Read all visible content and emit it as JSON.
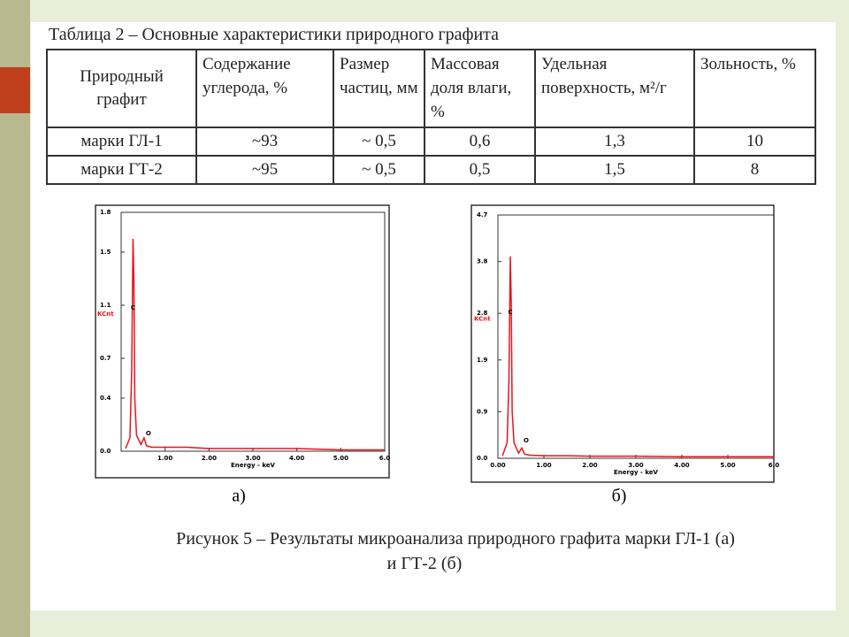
{
  "table": {
    "caption": "Таблица 2 – Основные характеристики природного графита",
    "header": [
      "Природный графит",
      "Содержание углерода, %",
      "Размер частиц, мм",
      "Массовая доля влаги, %",
      "Удельная поверхность, м²/г",
      "Зольность, %"
    ],
    "rows": [
      [
        "марки ГЛ-1",
        "~93",
        "~ 0,5",
        "0,6",
        "1,3",
        "10"
      ],
      [
        "марки ГТ-2",
        "~95",
        "~ 0,5",
        "0,5",
        "1,5",
        "8"
      ]
    ]
  },
  "figures": [
    {
      "type": "area",
      "label": "а)",
      "y_label": "KCnt",
      "x_label": "Energy - keV",
      "color": "#e8141c",
      "peak_labels": [
        "C",
        "O"
      ],
      "ylim": [
        0,
        1.8
      ],
      "yticks": [
        {
          "value": 0,
          "label": "0.0"
        },
        0.4,
        0.7,
        1.1,
        1.5,
        1.8
      ],
      "xlim": [
        0,
        6
      ],
      "xticks": [
        {
          "value": 1,
          "label": "1.00"
        },
        {
          "value": 2,
          "label": "2.00"
        },
        {
          "value": 3,
          "label": "3.00"
        },
        {
          "value": 4,
          "label": "4.00"
        },
        {
          "value": 5,
          "label": "5.00"
        },
        {
          "value": 6,
          "label": "6.0"
        }
      ],
      "x": [
        0.1,
        0.2,
        0.24,
        0.27,
        0.29,
        0.31,
        0.35,
        0.45,
        0.52,
        0.58,
        0.7,
        1.0,
        1.5,
        2.0,
        3.0,
        4.0,
        5.0,
        6.0
      ],
      "values": [
        0.02,
        0.1,
        0.6,
        1.6,
        1.3,
        0.4,
        0.12,
        0.05,
        0.1,
        0.04,
        0.03,
        0.03,
        0.03,
        0.02,
        0.02,
        0.02,
        0.01,
        0.01
      ]
    },
    {
      "type": "area",
      "label": "б)",
      "y_label": "KCnt",
      "x_label": "Energy - keV",
      "color": "#e8141c",
      "peak_labels": [
        "C",
        "O"
      ],
      "ylim": [
        0,
        4.7
      ],
      "yticks": [
        {
          "value": 0,
          "label": "0.0"
        },
        0.9,
        1.9,
        2.8,
        3.8,
        4.7
      ],
      "xlim": [
        0,
        6
      ],
      "xticks": [
        {
          "value": 0,
          "label": "0.00"
        },
        {
          "value": 1,
          "label": "1.00"
        },
        {
          "value": 2,
          "label": "2.00"
        },
        {
          "value": 3,
          "label": "3.00"
        },
        {
          "value": 4,
          "label": "4.00"
        },
        {
          "value": 5,
          "label": "5.00"
        },
        {
          "value": 6,
          "label": "6.0"
        }
      ],
      "x": [
        0.1,
        0.2,
        0.24,
        0.27,
        0.29,
        0.31,
        0.35,
        0.45,
        0.52,
        0.58,
        0.7,
        1.0,
        1.5,
        2.0,
        3.0,
        4.0,
        5.0,
        6.0
      ],
      "values": [
        0.05,
        0.3,
        1.5,
        3.9,
        3.0,
        0.9,
        0.3,
        0.1,
        0.2,
        0.08,
        0.06,
        0.05,
        0.05,
        0.04,
        0.04,
        0.03,
        0.03,
        0.03
      ]
    }
  ],
  "caption": [
    "Рисунок 5 – Результаты микроанализа природного графита марки ГЛ-1 (а)",
    "и ГТ-2 (б)"
  ]
}
